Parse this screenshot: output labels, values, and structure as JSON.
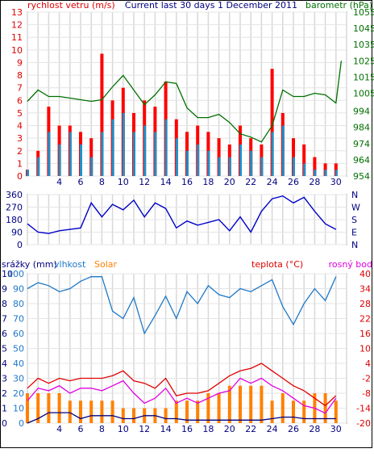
{
  "chart_data": [
    {
      "type": "bar+line",
      "title": "Current last 30 days 1 December 2011",
      "left_axis_label": "rychlost vetru (m/s)",
      "right_axis_label": "barometr (hPa)",
      "left_ticks": [
        "0",
        "1",
        "2",
        "3",
        "4",
        "5",
        "6",
        "7",
        "8",
        "9",
        "10",
        "11",
        "12",
        "13"
      ],
      "left_ylim": [
        0,
        13
      ],
      "right_ticks": [
        "954",
        "964",
        "974",
        "984",
        "994",
        "1005",
        "1015",
        "1025",
        "1035",
        "1045",
        "1055"
      ],
      "right_ylim": [
        954,
        1055
      ],
      "x_ticks": [
        "4",
        "6",
        "8",
        "10",
        "12",
        "14",
        "16",
        "18",
        "20",
        "22",
        "24",
        "26",
        "28",
        "30"
      ],
      "xlim": [
        1,
        31
      ],
      "grid": true,
      "colors": {
        "gust": "#ff0000",
        "wind": "#1e90c8",
        "pressure": "#007000"
      },
      "series": [
        {
          "name": "rychlost vetru (m/s)",
          "x": [
            1,
            2,
            3,
            4,
            5,
            6,
            7,
            8,
            9,
            10,
            11,
            12,
            13,
            14,
            15,
            16,
            17,
            18,
            19,
            20,
            21,
            22,
            23,
            24,
            25,
            26,
            27,
            28,
            29,
            30
          ],
          "values": [
            0.5,
            1.5,
            3.5,
            2.5,
            3.5,
            2.5,
            1.5,
            3.5,
            4.5,
            5,
            3.5,
            4,
            3.5,
            4.5,
            3,
            2,
            2.5,
            2,
            1.5,
            1.5,
            2.5,
            2,
            1.5,
            3.5,
            4,
            1.5,
            1,
            0.5,
            0.5,
            0.5
          ]
        },
        {
          "name": "gust",
          "x": [
            1,
            2,
            3,
            4,
            5,
            6,
            7,
            8,
            9,
            10,
            11,
            12,
            13,
            14,
            15,
            16,
            17,
            18,
            19,
            20,
            21,
            22,
            23,
            24,
            25,
            26,
            27,
            28,
            29,
            30
          ],
          "values": [
            0.5,
            2,
            5.5,
            4,
            4,
            3.5,
            3,
            9.7,
            6,
            7,
            5,
            6,
            5.5,
            7.5,
            4.5,
            3.5,
            4,
            3.5,
            3,
            2.5,
            4,
            3,
            2.5,
            8.5,
            5,
            3,
            2.5,
            1.5,
            1,
            1
          ]
        },
        {
          "name": "barometr (hPa)",
          "x": [
            1,
            2,
            3,
            4,
            5,
            6,
            7,
            8,
            9,
            10,
            11,
            12,
            13,
            14,
            15,
            16,
            17,
            18,
            19,
            20,
            21,
            22,
            23,
            24,
            25,
            26,
            27,
            28,
            29,
            30,
            30.5
          ],
          "values": [
            1000,
            1007,
            1003,
            1003,
            1002,
            1001,
            1000,
            1001,
            1009,
            1016,
            1007,
            998,
            1004,
            1012,
            1011,
            996,
            990,
            990,
            992,
            987,
            980,
            978,
            975,
            985,
            1007,
            1003,
            1003,
            1005,
            1004,
            999,
            1025
          ]
        }
      ]
    },
    {
      "type": "line",
      "left_ticks": [
        "0",
        "90",
        "180",
        "270",
        "360"
      ],
      "ylim": [
        0,
        360
      ],
      "right_ticks": [
        "N",
        "W",
        "S",
        "E",
        "N"
      ],
      "xlim": [
        1,
        31
      ],
      "colors": {
        "direction": "#0000c8"
      },
      "series": [
        {
          "name": "direction",
          "x": [
            1,
            2,
            3,
            4,
            5,
            6,
            7,
            8,
            9,
            10,
            11,
            12,
            13,
            14,
            15,
            16,
            17,
            18,
            19,
            20,
            21,
            22,
            23,
            24,
            25,
            26,
            27,
            28,
            29,
            30
          ],
          "values": [
            150,
            90,
            80,
            100,
            110,
            120,
            300,
            200,
            290,
            250,
            320,
            200,
            300,
            260,
            120,
            170,
            140,
            160,
            180,
            100,
            200,
            90,
            240,
            330,
            350,
            300,
            340,
            240,
            150,
            110
          ]
        }
      ]
    },
    {
      "type": "line+bar",
      "left_labels": [
        "srážky (mm)",
        "vlhkost",
        "Solar"
      ],
      "right_labels": [
        "teplota (°C)",
        "rosný bod"
      ],
      "left_ticks_humidity": [
        "0",
        "10",
        "20",
        "30",
        "40",
        "50",
        "60",
        "70",
        "80",
        "90",
        "100"
      ],
      "left_ticks_rain": [
        "0",
        "1",
        "2",
        "3",
        "4",
        "5",
        "6",
        "7",
        "8",
        "9",
        "10"
      ],
      "right_ticks": [
        "40",
        "34",
        "28",
        "22",
        "16",
        "10",
        "4",
        "-2",
        "-8",
        "-14",
        "-20"
      ],
      "humidity_ylim": [
        0,
        100
      ],
      "temp_ylim": [
        -20,
        40
      ],
      "xlim": [
        1,
        31
      ],
      "colors": {
        "humidity": "#1e78c8",
        "temperature": "#e00000",
        "dewpoint": "#e000e0",
        "solar": "#ff8000",
        "rain": "#000080"
      },
      "series": [
        {
          "name": "vlhkost",
          "x": [
            1,
            2,
            3,
            4,
            5,
            6,
            7,
            8,
            9,
            10,
            11,
            12,
            13,
            14,
            15,
            16,
            17,
            18,
            19,
            20,
            21,
            22,
            23,
            24,
            25,
            26,
            27,
            28,
            29,
            30
          ],
          "values": [
            90,
            94,
            92,
            88,
            90,
            95,
            98,
            98,
            75,
            70,
            84,
            60,
            72,
            85,
            70,
            88,
            80,
            92,
            86,
            84,
            90,
            88,
            92,
            96,
            78,
            66,
            80,
            90,
            82,
            98
          ]
        },
        {
          "name": "teplota (°C)",
          "x": [
            1,
            2,
            3,
            4,
            5,
            6,
            7,
            8,
            9,
            10,
            11,
            12,
            13,
            14,
            15,
            16,
            17,
            18,
            19,
            20,
            21,
            22,
            23,
            24,
            25,
            26,
            27,
            28,
            29,
            30
          ],
          "values": [
            -6,
            -2,
            -4,
            -2,
            -3,
            -2,
            -2,
            -2,
            -1,
            1,
            -3,
            -4,
            -6,
            -2,
            -9,
            -8,
            -8,
            -7,
            -4,
            -1,
            1,
            2,
            4,
            1,
            -2,
            -5,
            -7,
            -10,
            -13,
            -9
          ]
        },
        {
          "name": "rosný bod",
          "x": [
            1,
            2,
            3,
            4,
            5,
            6,
            7,
            8,
            9,
            10,
            11,
            12,
            13,
            14,
            15,
            16,
            17,
            18,
            19,
            20,
            21,
            22,
            23,
            24,
            25,
            26,
            27,
            28,
            29,
            30
          ],
          "values": [
            -11,
            -6,
            -7,
            -5,
            -8,
            -6,
            -6,
            -7,
            -5,
            -3,
            -8,
            -12,
            -10,
            -6,
            -12,
            -10,
            -12,
            -10,
            -8,
            -7,
            -2,
            -4,
            -2,
            -5,
            -7,
            -10,
            -13,
            -14,
            -16,
            -10
          ]
        },
        {
          "name": "Solar",
          "x": [
            1,
            2,
            3,
            4,
            5,
            6,
            7,
            8,
            9,
            10,
            11,
            12,
            13,
            14,
            15,
            16,
            17,
            18,
            19,
            20,
            21,
            22,
            23,
            24,
            25,
            26,
            27,
            28,
            29,
            30
          ],
          "values": [
            2,
            2,
            2,
            2,
            1.5,
            1.5,
            1.5,
            1.5,
            1.5,
            1,
            1,
            1,
            1,
            1,
            1.5,
            1.5,
            1.5,
            2,
            2,
            2.5,
            2.5,
            2.5,
            2.5,
            1.5,
            2,
            1.5,
            1.5,
            2,
            2,
            1.5
          ]
        },
        {
          "name": "srážky (mm)",
          "x": [
            1,
            2,
            3,
            4,
            5,
            6,
            7,
            8,
            9,
            10,
            11,
            12,
            13,
            14,
            15,
            16,
            17,
            18,
            19,
            20,
            21,
            22,
            23,
            24,
            25,
            26,
            27,
            28,
            29,
            30
          ],
          "values": [
            0,
            0.3,
            0.7,
            0.7,
            0.7,
            0.3,
            0.5,
            0.5,
            0.5,
            0.3,
            0.3,
            0.5,
            0.5,
            0.3,
            0.3,
            0.2,
            0.2,
            0.2,
            0.2,
            0.2,
            0.2,
            0.2,
            0.2,
            0.3,
            0.4,
            0.4,
            0.3,
            0.3,
            0.3,
            0.3
          ]
        }
      ]
    }
  ]
}
